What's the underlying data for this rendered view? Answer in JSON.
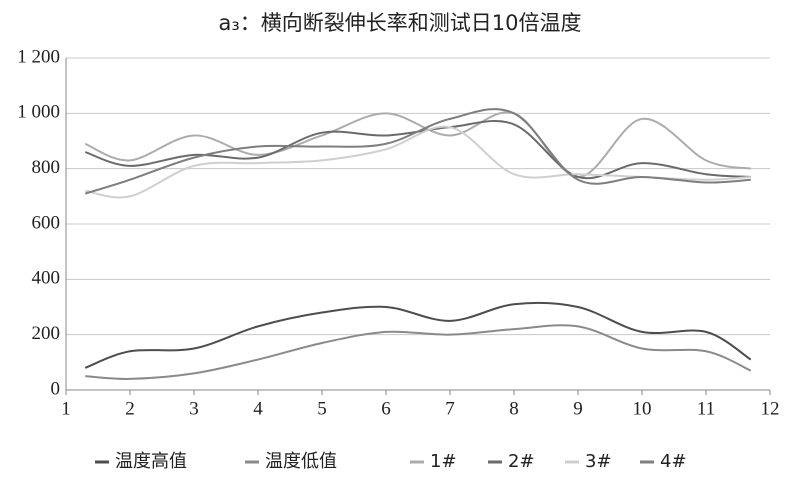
{
  "chart_data": {
    "type": "line",
    "title": "a₃：横向断裂伸长率和测试日10倍温度",
    "x": [
      1.3,
      2,
      3,
      4,
      5,
      6,
      7,
      8,
      9,
      10,
      11,
      11.7
    ],
    "series": [
      {
        "name": "温度高值",
        "color": "#4d4d4d",
        "values": [
          80,
          140,
          150,
          230,
          280,
          300,
          250,
          310,
          300,
          210,
          210,
          110
        ]
      },
      {
        "name": "温度低值",
        "color": "#8a8a8a",
        "values": [
          50,
          40,
          60,
          110,
          170,
          210,
          200,
          220,
          230,
          150,
          140,
          70
        ]
      },
      {
        "name": "1#",
        "color": "#acacac",
        "values": [
          890,
          830,
          920,
          850,
          920,
          1000,
          920,
          1000,
          770,
          980,
          830,
          800
        ]
      },
      {
        "name": "2#",
        "color": "#6a6a6a",
        "values": [
          860,
          810,
          850,
          840,
          930,
          920,
          950,
          960,
          770,
          820,
          780,
          770
        ]
      },
      {
        "name": "3#",
        "color": "#cfcfcf",
        "values": [
          720,
          700,
          810,
          820,
          830,
          870,
          950,
          780,
          780,
          770,
          760,
          770
        ]
      },
      {
        "name": "4#",
        "color": "#7e7e7e",
        "values": [
          710,
          760,
          840,
          880,
          880,
          890,
          980,
          1000,
          760,
          770,
          750,
          760
        ]
      }
    ],
    "xlim": [
      1,
      12
    ],
    "xticks": [
      1,
      2,
      3,
      4,
      5,
      6,
      7,
      8,
      9,
      10,
      11,
      12
    ],
    "ylim": [
      0,
      1200
    ],
    "yticks": [
      0,
      200,
      400,
      600,
      800,
      {
        "value": 1000,
        "label": "1 000"
      },
      {
        "value": 1200,
        "label": "1 200"
      }
    ],
    "grid": true,
    "legend": "bottom"
  }
}
